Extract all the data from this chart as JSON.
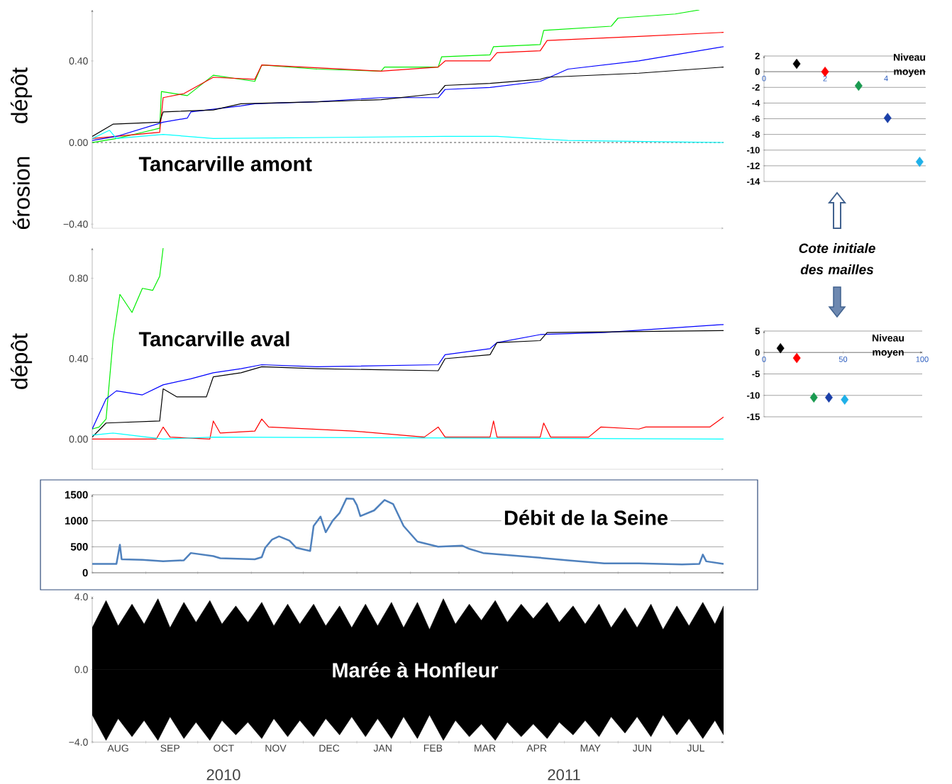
{
  "chart_data": [
    {
      "type": "line",
      "title": "Tancarville amont",
      "ylabel": "dépôt",
      "annotations": [
        "érosion"
      ],
      "xlim": [
        "2010-08-01",
        "2011-08-01"
      ],
      "ylim": [
        -0.42,
        0.65
      ],
      "tick_labels": "y",
      "yticks": [
        {
          "value": -0.4,
          "label": "−0.40"
        },
        {
          "value": 0,
          "label": "0.00"
        },
        {
          "value": 0.4,
          "label": "0.40"
        }
      ],
      "ref_lines": [
        {
          "axis": "y",
          "value": 0,
          "color": "#000000",
          "line_style": "dashed"
        }
      ],
      "series": [
        {
          "color": "#00ee00",
          "x": [
            "2010-08-01",
            "2010-08-15",
            "2010-08-30",
            "2010-09-09",
            "2010-09-10",
            "2010-09-25",
            "2010-10-10",
            "2010-11-03",
            "2010-11-07",
            "2010-12-09",
            "2011-01-15",
            "2011-01-17",
            "2011-02-17",
            "2011-02-19",
            "2011-03-19",
            "2011-03-21",
            "2011-04-17",
            "2011-04-19",
            "2011-05-28",
            "2011-06-01",
            "2011-07-04",
            "2011-07-18"
          ],
          "values": [
            0,
            0.02,
            0.05,
            0.07,
            0.25,
            0.23,
            0.33,
            0.3,
            0.38,
            0.36,
            0.35,
            0.37,
            0.37,
            0.42,
            0.43,
            0.47,
            0.48,
            0.55,
            0.57,
            0.61,
            0.63,
            0.65
          ]
        },
        {
          "color": "#ff0000",
          "x": [
            "2010-08-01",
            "2010-09-09",
            "2010-09-11",
            "2010-09-23",
            "2010-10-10",
            "2010-11-03",
            "2010-11-07",
            "2011-01-15",
            "2011-02-17",
            "2011-02-21",
            "2011-03-19",
            "2011-03-23",
            "2011-04-17",
            "2011-04-21",
            "2011-06-13",
            "2011-08-01"
          ],
          "values": [
            0.02,
            0.05,
            0.22,
            0.24,
            0.32,
            0.31,
            0.38,
            0.35,
            0.37,
            0.4,
            0.4,
            0.44,
            0.45,
            0.5,
            0.52,
            0.54
          ]
        },
        {
          "color": "#0000ff",
          "x": [
            "2010-08-01",
            "2010-08-15",
            "2010-09-11",
            "2010-09-25",
            "2010-09-27",
            "2010-10-26",
            "2010-11-03",
            "2010-12-09",
            "2011-01-15",
            "2011-02-17",
            "2011-02-21",
            "2011-03-19",
            "2011-04-17",
            "2011-05-03",
            "2011-06-13",
            "2011-08-01"
          ],
          "values": [
            0.01,
            0.03,
            0.1,
            0.12,
            0.15,
            0.18,
            0.19,
            0.2,
            0.22,
            0.22,
            0.26,
            0.27,
            0.3,
            0.36,
            0.4,
            0.47
          ]
        },
        {
          "color": "#000000",
          "x": [
            "2010-08-01",
            "2010-08-13",
            "2010-09-09",
            "2010-09-11",
            "2010-10-10",
            "2010-10-26",
            "2010-12-09",
            "2011-01-15",
            "2011-02-17",
            "2011-02-21",
            "2011-03-19",
            "2011-04-17",
            "2011-04-21",
            "2011-06-13",
            "2011-08-01"
          ],
          "values": [
            0.03,
            0.09,
            0.1,
            0.15,
            0.16,
            0.19,
            0.2,
            0.21,
            0.24,
            0.28,
            0.29,
            0.31,
            0.32,
            0.34,
            0.37
          ]
        },
        {
          "color": "#00ffff",
          "x": [
            "2010-08-01",
            "2010-08-11",
            "2010-08-15",
            "2010-09-11",
            "2010-10-10",
            "2011-02-21",
            "2011-03-23",
            "2011-05-03",
            "2011-08-01"
          ],
          "values": [
            0.02,
            0.06,
            0.02,
            0.04,
            0.02,
            0.03,
            0.03,
            0.01,
            0
          ]
        }
      ]
    },
    {
      "type": "line",
      "title": "Tancarville aval",
      "ylabel": "dépôt",
      "xlim": [
        "2010-08-01",
        "2011-08-01"
      ],
      "ylim": [
        -0.15,
        0.95
      ],
      "tick_labels": "y",
      "yticks": [
        {
          "value": 0,
          "label": "0.00"
        },
        {
          "value": 0.4,
          "label": "0.40"
        },
        {
          "value": 0.8,
          "label": "0.80"
        }
      ],
      "series": [
        {
          "color": "#00ee00",
          "x": [
            "2010-08-01",
            "2010-08-05",
            "2010-08-09",
            "2010-08-13",
            "2010-08-17",
            "2010-08-24",
            "2010-08-30",
            "2010-09-05",
            "2010-09-09",
            "2010-09-11"
          ],
          "values": [
            0.05,
            0.06,
            0.1,
            0.49,
            0.72,
            0.63,
            0.75,
            0.74,
            0.81,
            0.95
          ]
        },
        {
          "color": "#0000ff",
          "x": [
            "2010-08-01",
            "2010-08-09",
            "2010-08-15",
            "2010-08-30",
            "2010-09-11",
            "2010-09-27",
            "2010-10-10",
            "2010-10-26",
            "2010-11-07",
            "2010-12-09",
            "2011-02-17",
            "2011-02-21",
            "2011-03-19",
            "2011-03-23",
            "2011-04-17",
            "2011-05-24",
            "2011-08-01"
          ],
          "values": [
            0.05,
            0.2,
            0.24,
            0.22,
            0.27,
            0.3,
            0.33,
            0.35,
            0.37,
            0.36,
            0.37,
            0.42,
            0.45,
            0.48,
            0.52,
            0.53,
            0.57
          ]
        },
        {
          "color": "#000000",
          "x": [
            "2010-08-01",
            "2010-08-09",
            "2010-09-09",
            "2010-09-11",
            "2010-09-19",
            "2010-10-06",
            "2010-10-10",
            "2010-10-26",
            "2010-11-07",
            "2010-12-09",
            "2011-02-17",
            "2011-02-21",
            "2011-03-19",
            "2011-03-23",
            "2011-04-17",
            "2011-04-21",
            "2011-08-01"
          ],
          "values": [
            0.01,
            0.08,
            0.09,
            0.25,
            0.21,
            0.21,
            0.31,
            0.33,
            0.36,
            0.35,
            0.34,
            0.4,
            0.42,
            0.48,
            0.49,
            0.53,
            0.54
          ]
        },
        {
          "color": "#ff0000",
          "x": [
            "2010-08-01",
            "2010-09-07",
            "2010-09-11",
            "2010-09-15",
            "2010-10-08",
            "2010-10-10",
            "2010-10-14",
            "2010-11-03",
            "2010-11-07",
            "2010-11-11",
            "2010-12-30",
            "2011-02-09",
            "2011-02-17",
            "2011-02-21",
            "2011-03-19",
            "2011-03-21",
            "2011-03-23",
            "2011-04-17",
            "2011-04-19",
            "2011-04-23",
            "2011-05-15",
            "2011-05-22",
            "2011-06-13",
            "2011-06-17",
            "2011-07-24",
            "2011-08-01"
          ],
          "values": [
            0,
            0,
            0.06,
            0.01,
            0,
            0.09,
            0.03,
            0.04,
            0.1,
            0.06,
            0.04,
            0.01,
            0.06,
            0.01,
            0.01,
            0.09,
            0.01,
            0.01,
            0.08,
            0.01,
            0.01,
            0.06,
            0.05,
            0.06,
            0.06,
            0.11
          ]
        },
        {
          "color": "#00ffff",
          "x": [
            "2010-08-01",
            "2010-08-13",
            "2010-09-11",
            "2010-10-10",
            "2011-08-01"
          ],
          "values": [
            0.02,
            0.03,
            0,
            0.01,
            0
          ]
        }
      ]
    },
    {
      "type": "line",
      "title": "Débit de la Seine",
      "color": "#4f81bd",
      "grid": "y",
      "tick_labels": "y",
      "xlim": [
        "2010-08-01",
        "2011-08-01"
      ],
      "ylim": [
        0,
        1500
      ],
      "yticks": [
        0,
        500,
        1000,
        1500
      ],
      "xticks": [
        {
          "value": "2010-08-01",
          "label": null
        },
        {
          "value": "2010-09-01",
          "label": null
        },
        {
          "value": "2010-10-01",
          "label": null
        },
        {
          "value": "2010-11-01",
          "label": null
        },
        {
          "value": "2010-12-01",
          "label": null
        },
        {
          "value": "2011-01-01",
          "label": null
        },
        {
          "value": "2011-02-01",
          "label": null
        },
        {
          "value": "2011-03-01",
          "label": null
        },
        {
          "value": "2011-04-01",
          "label": null
        },
        {
          "value": "2011-05-01",
          "label": null
        },
        {
          "value": "2011-06-01",
          "label": null
        },
        {
          "value": "2011-07-01",
          "label": null
        },
        {
          "value": "2011-08-01",
          "label": null
        }
      ],
      "x": [
        "2010-08-01",
        "2010-08-15",
        "2010-08-17",
        "2010-08-18",
        "2010-08-30",
        "2010-09-11",
        "2010-09-23",
        "2010-09-27",
        "2010-10-10",
        "2010-10-14",
        "2010-11-03",
        "2010-11-07",
        "2010-11-09",
        "2010-11-13",
        "2010-11-17",
        "2010-11-23",
        "2010-11-27",
        "2010-12-05",
        "2010-12-07",
        "2010-12-11",
        "2010-12-14",
        "2010-12-18",
        "2010-12-22",
        "2010-12-26",
        "2010-12-30",
        "2011-01-01",
        "2011-01-03",
        "2011-01-11",
        "2011-01-17",
        "2011-01-22",
        "2011-01-28",
        "2011-02-05",
        "2011-02-17",
        "2011-03-03",
        "2011-03-07",
        "2011-03-15",
        "2011-04-13",
        "2011-05-03",
        "2011-05-24",
        "2011-06-13",
        "2011-07-08",
        "2011-07-18",
        "2011-07-20",
        "2011-07-22",
        "2011-08-01"
      ],
      "values": [
        170,
        170,
        540,
        260,
        250,
        220,
        240,
        380,
        320,
        280,
        260,
        300,
        480,
        640,
        700,
        620,
        480,
        420,
        900,
        1080,
        780,
        1000,
        1150,
        1430,
        1420,
        1300,
        1090,
        1200,
        1400,
        1320,
        900,
        600,
        500,
        520,
        460,
        380,
        300,
        240,
        180,
        180,
        160,
        170,
        350,
        220,
        170
      ]
    },
    {
      "type": "area",
      "title": "Marée à Honfleur",
      "annotations": [
        "2010",
        "2011"
      ],
      "xlim": [
        "2010-08-01",
        "2011-08-01"
      ],
      "ylim": [
        -4,
        4
      ],
      "yticks": [
        {
          "value": -4,
          "label": "−4.0"
        },
        {
          "value": 0,
          "label": "0.0"
        },
        {
          "value": 4,
          "label": "4.0"
        }
      ],
      "xticks": [
        {
          "value": "2010-08-01",
          "label": null
        },
        {
          "value": "2010-09-01",
          "label": null
        },
        {
          "value": "2010-10-01",
          "label": null
        },
        {
          "value": "2010-11-01",
          "label": null
        },
        {
          "value": "2010-12-01",
          "label": null
        },
        {
          "value": "2011-01-01",
          "label": null
        },
        {
          "value": "2011-02-01",
          "label": null
        },
        {
          "value": "2011-03-01",
          "label": null
        },
        {
          "value": "2011-04-01",
          "label": null
        },
        {
          "value": "2011-05-01",
          "label": null
        },
        {
          "value": "2011-06-01",
          "label": null
        },
        {
          "value": "2011-07-01",
          "label": null
        },
        {
          "value": "2011-08-01",
          "label": null
        },
        {
          "value": "2010-08-16",
          "label": "AUG"
        },
        {
          "value": "2010-09-15",
          "label": "SEP"
        },
        {
          "value": "2010-10-16",
          "label": "OCT"
        },
        {
          "value": "2010-11-15",
          "label": "NOV"
        },
        {
          "value": "2010-12-16",
          "label": "DEC"
        },
        {
          "value": "2011-01-16",
          "label": "JAN"
        },
        {
          "value": "2011-02-14",
          "label": "FEB"
        },
        {
          "value": "2011-03-16",
          "label": "MAR"
        },
        {
          "value": "2011-04-15",
          "label": "APR"
        },
        {
          "value": "2011-05-16",
          "label": "MAY"
        },
        {
          "value": "2011-06-15",
          "label": "JUN"
        },
        {
          "value": "2011-07-16",
          "label": "JUL"
        }
      ],
      "x": [
        "2010-08-01",
        "2010-08-09",
        "2010-08-16",
        "2010-08-24",
        "2010-08-31",
        "2010-09-08",
        "2010-09-15",
        "2010-09-23",
        "2010-09-30",
        "2010-10-08",
        "2010-10-15",
        "2010-10-23",
        "2010-10-30",
        "2010-11-07",
        "2010-11-14",
        "2010-11-22",
        "2010-11-29",
        "2010-12-07",
        "2010-12-14",
        "2010-12-22",
        "2010-12-29",
        "2011-01-06",
        "2011-01-13",
        "2011-01-21",
        "2011-01-28",
        "2011-02-05",
        "2011-02-12",
        "2011-02-20",
        "2011-02-27",
        "2011-03-07",
        "2011-03-14",
        "2011-03-22",
        "2011-03-29",
        "2011-04-06",
        "2011-04-13",
        "2011-04-21",
        "2011-04-28",
        "2011-05-06",
        "2011-05-13",
        "2011-05-21",
        "2011-05-28",
        "2011-06-05",
        "2011-06-12",
        "2011-06-20",
        "2011-06-27",
        "2011-07-05",
        "2011-07-12",
        "2011-07-20",
        "2011-07-27",
        "2011-08-01"
      ],
      "series": [
        {
          "color": "#000000",
          "values": [
            2.3,
            3.8,
            2.4,
            3.6,
            2.5,
            3.9,
            2.3,
            3.7,
            2.6,
            3.8,
            2.5,
            3.5,
            2.6,
            3.7,
            2.4,
            3.6,
            2.5,
            3.6,
            2.4,
            3.5,
            2.3,
            3.6,
            2.4,
            3.7,
            2.3,
            3.7,
            2.2,
            3.9,
            2.5,
            3.6,
            2.7,
            3.8,
            2.6,
            3.6,
            2.8,
            3.7,
            2.6,
            3.5,
            2.5,
            3.6,
            2.3,
            3.4,
            2.3,
            3.6,
            2.2,
            3.5,
            2.4,
            3.7,
            2.5,
            3.5
          ]
        },
        {
          "color": "#000000",
          "values": [
            -2.5,
            -3.9,
            -2.7,
            -3.7,
            -2.8,
            -3.9,
            -2.6,
            -3.8,
            -2.9,
            -3.9,
            -2.8,
            -3.6,
            -2.9,
            -3.8,
            -2.7,
            -3.7,
            -2.8,
            -3.7,
            -2.7,
            -3.6,
            -2.6,
            -3.7,
            -2.7,
            -3.8,
            -2.6,
            -3.8,
            -2.5,
            -3.9,
            -2.8,
            -3.7,
            -3.0,
            -3.9,
            -2.9,
            -3.7,
            -3.0,
            -3.8,
            -2.9,
            -3.6,
            -2.8,
            -3.7,
            -2.6,
            -3.5,
            -2.6,
            -3.7,
            -2.5,
            -3.6,
            -2.7,
            -3.8,
            -2.8,
            -3.6
          ]
        }
      ]
    },
    {
      "type": "scatter",
      "marker": "diamond",
      "grid": "y",
      "annotations": [
        "Niveau moyen",
        "Cote initiale des mailles"
      ],
      "xlim": [
        0,
        5.3
      ],
      "ylim": [
        -14,
        2
      ],
      "xticks": [
        0,
        2,
        4
      ],
      "yticks": [
        -14,
        -12,
        -10,
        -8,
        -6,
        -4,
        -2,
        0,
        2
      ],
      "x": [
        1.07,
        2.0,
        3.1,
        4.05,
        5.1
      ],
      "values": [
        1,
        0,
        -1.8,
        -5.9,
        -11.5
      ],
      "colors": [
        "#000000",
        "#ff0000",
        "#1a9a50",
        "#1a3fa8",
        "#1fb0e8"
      ]
    },
    {
      "type": "scatter",
      "marker": "diamond",
      "grid": "y",
      "annotations": [
        "Niveau moyen"
      ],
      "xlim": [
        0,
        100
      ],
      "ylim": [
        -15,
        5
      ],
      "xticks": [
        0,
        50,
        100
      ],
      "yticks": [
        -15,
        -10,
        -5,
        0,
        5
      ],
      "x": [
        10.4,
        20.7,
        31.5,
        41,
        51
      ],
      "values": [
        1,
        -1.3,
        -10.5,
        -10.5,
        -11
      ],
      "colors": [
        "#000000",
        "#ff0000",
        "#1a9a50",
        "#1a3fa8",
        "#1fb0e8"
      ]
    }
  ]
}
